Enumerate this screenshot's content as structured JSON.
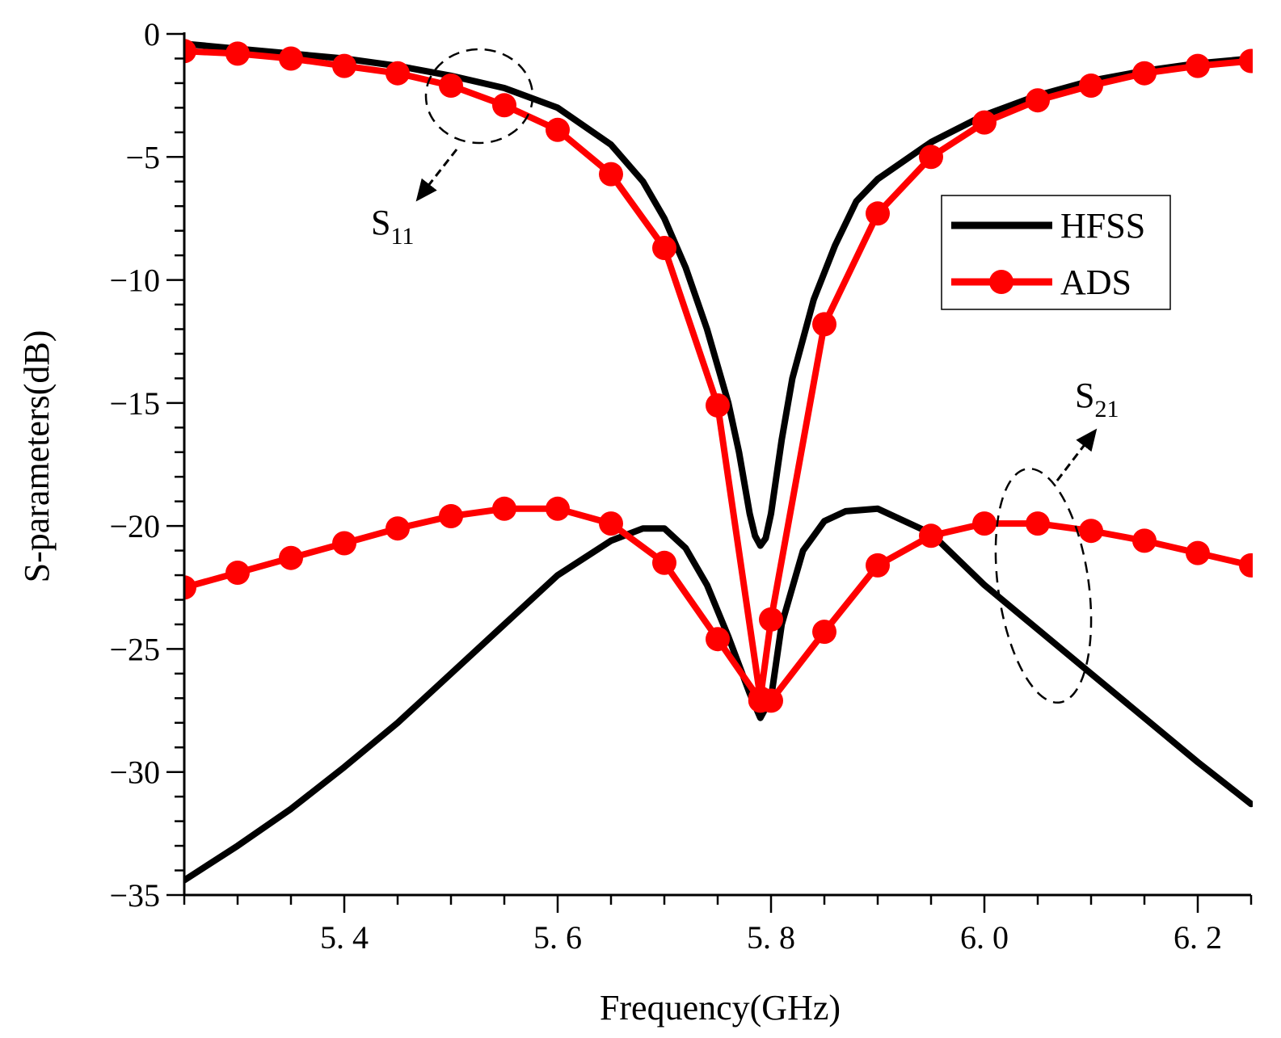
{
  "chart_data": {
    "type": "line",
    "title": "",
    "xlabel": "Frequency(GHz)",
    "ylabel": "S-parameters(dB)",
    "xlim": [
      5.25,
      6.25
    ],
    "ylim": [
      -35,
      0
    ],
    "xticks": [
      5.4,
      5.6,
      5.8,
      6.0,
      6.2
    ],
    "xtick_labels": [
      "5. 4",
      "5. 6",
      "5. 8",
      "6. 0",
      "6. 2"
    ],
    "yticks": [
      0,
      -5,
      -10,
      -15,
      -20,
      -25,
      -30,
      -35
    ],
    "ytick_labels": [
      "0",
      "−5",
      "−10",
      "−15",
      "−20",
      "−25",
      "−30",
      "−35"
    ],
    "legend": {
      "position": "top-right",
      "entries": [
        "HFSS",
        "ADS"
      ]
    },
    "colors": {
      "HFSS": "#000000",
      "ADS": "#ff0000"
    },
    "series": [
      {
        "name": "HFSS",
        "curve": "S11",
        "x": [
          5.25,
          5.3,
          5.35,
          5.4,
          5.45,
          5.5,
          5.55,
          5.6,
          5.65,
          5.68,
          5.7,
          5.72,
          5.74,
          5.76,
          5.77,
          5.78,
          5.785,
          5.79,
          5.795,
          5.8,
          5.81,
          5.82,
          5.84,
          5.86,
          5.88,
          5.9,
          5.95,
          6.0,
          6.05,
          6.1,
          6.15,
          6.2,
          6.25
        ],
        "y": [
          -0.4,
          -0.6,
          -0.8,
          -1.0,
          -1.3,
          -1.7,
          -2.2,
          -3.0,
          -4.5,
          -6.0,
          -7.5,
          -9.5,
          -12.0,
          -15.0,
          -17.0,
          -19.5,
          -20.4,
          -20.8,
          -20.5,
          -19.5,
          -16.5,
          -14.0,
          -10.8,
          -8.6,
          -6.8,
          -5.9,
          -4.4,
          -3.3,
          -2.5,
          -1.9,
          -1.5,
          -1.2,
          -1.0
        ]
      },
      {
        "name": "HFSS",
        "curve": "S21",
        "x": [
          5.25,
          5.3,
          5.35,
          5.4,
          5.45,
          5.5,
          5.55,
          5.6,
          5.65,
          5.68,
          5.7,
          5.72,
          5.74,
          5.76,
          5.78,
          5.79,
          5.8,
          5.81,
          5.83,
          5.85,
          5.87,
          5.9,
          5.95,
          6.0,
          6.05,
          6.1,
          6.15,
          6.2,
          6.25
        ],
        "y": [
          -34.4,
          -33.0,
          -31.5,
          -29.8,
          -28.0,
          -26.0,
          -24.0,
          -22.0,
          -20.6,
          -20.1,
          -20.1,
          -20.9,
          -22.4,
          -24.5,
          -26.8,
          -27.8,
          -27.0,
          -24.0,
          -21.0,
          -19.8,
          -19.4,
          -19.3,
          -20.3,
          -22.4,
          -24.2,
          -26.0,
          -27.8,
          -29.6,
          -31.3
        ]
      },
      {
        "name": "ADS",
        "curve": "S11",
        "x": [
          5.25,
          5.3,
          5.35,
          5.4,
          5.45,
          5.5,
          5.55,
          5.6,
          5.65,
          5.7,
          5.75,
          5.79,
          5.8,
          5.85,
          5.9,
          5.95,
          6.0,
          6.05,
          6.1,
          6.15,
          6.2,
          6.25
        ],
        "y": [
          -0.7,
          -0.8,
          -1.0,
          -1.3,
          -1.6,
          -2.1,
          -2.9,
          -3.9,
          -5.7,
          -8.7,
          -15.1,
          -27.0,
          -23.8,
          -11.8,
          -7.3,
          -5.0,
          -3.6,
          -2.7,
          -2.1,
          -1.6,
          -1.3,
          -1.1
        ]
      },
      {
        "name": "ADS",
        "curve": "S21",
        "x": [
          5.25,
          5.3,
          5.35,
          5.4,
          5.45,
          5.5,
          5.55,
          5.6,
          5.65,
          5.7,
          5.75,
          5.79,
          5.8,
          5.85,
          5.9,
          5.95,
          6.0,
          6.05,
          6.1,
          6.15,
          6.2,
          6.25
        ],
        "y": [
          -22.5,
          -21.9,
          -21.3,
          -20.7,
          -20.1,
          -19.6,
          -19.3,
          -19.3,
          -19.9,
          -21.5,
          -24.6,
          -27.1,
          -27.1,
          -24.3,
          -21.6,
          -20.4,
          -19.9,
          -19.9,
          -20.2,
          -20.6,
          -21.1,
          -21.6
        ]
      }
    ],
    "annotations": [
      {
        "label": "S",
        "subscript": "11",
        "target_x": 5.53,
        "target_y": -2.2
      },
      {
        "label": "S",
        "subscript": "21",
        "target_x": 6.08,
        "target_y": -25.0
      }
    ]
  }
}
